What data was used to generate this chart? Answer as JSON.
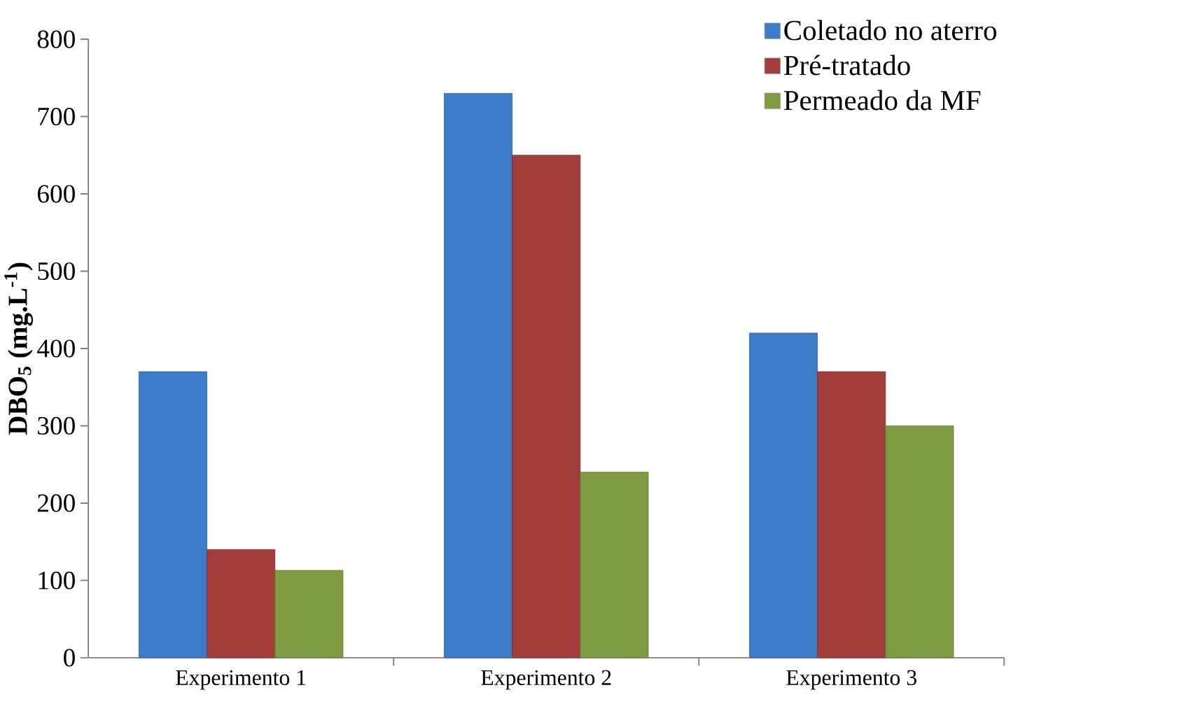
{
  "chart_data": {
    "type": "bar",
    "ylabel": "DBO$_{5}$ (mg.L$^{-1}$)",
    "categories": [
      "Experimento 1",
      "Experimento 2",
      "Experimento 3"
    ],
    "series": [
      {
        "name": "Coletado no aterro",
        "color": "#3d7cc9",
        "values": [
          370,
          730,
          420
        ]
      },
      {
        "name": "Pré-tratado",
        "color": "#a33d3b",
        "values": [
          140,
          650,
          370
        ]
      },
      {
        "name": "Permeado da MF",
        "color": "#809c42",
        "values": [
          113,
          240,
          300
        ]
      }
    ],
    "ylim": [
      0,
      800
    ],
    "yticks": [
      0,
      100,
      200,
      300,
      400,
      500,
      600,
      700,
      800
    ],
    "legend": "top right"
  }
}
